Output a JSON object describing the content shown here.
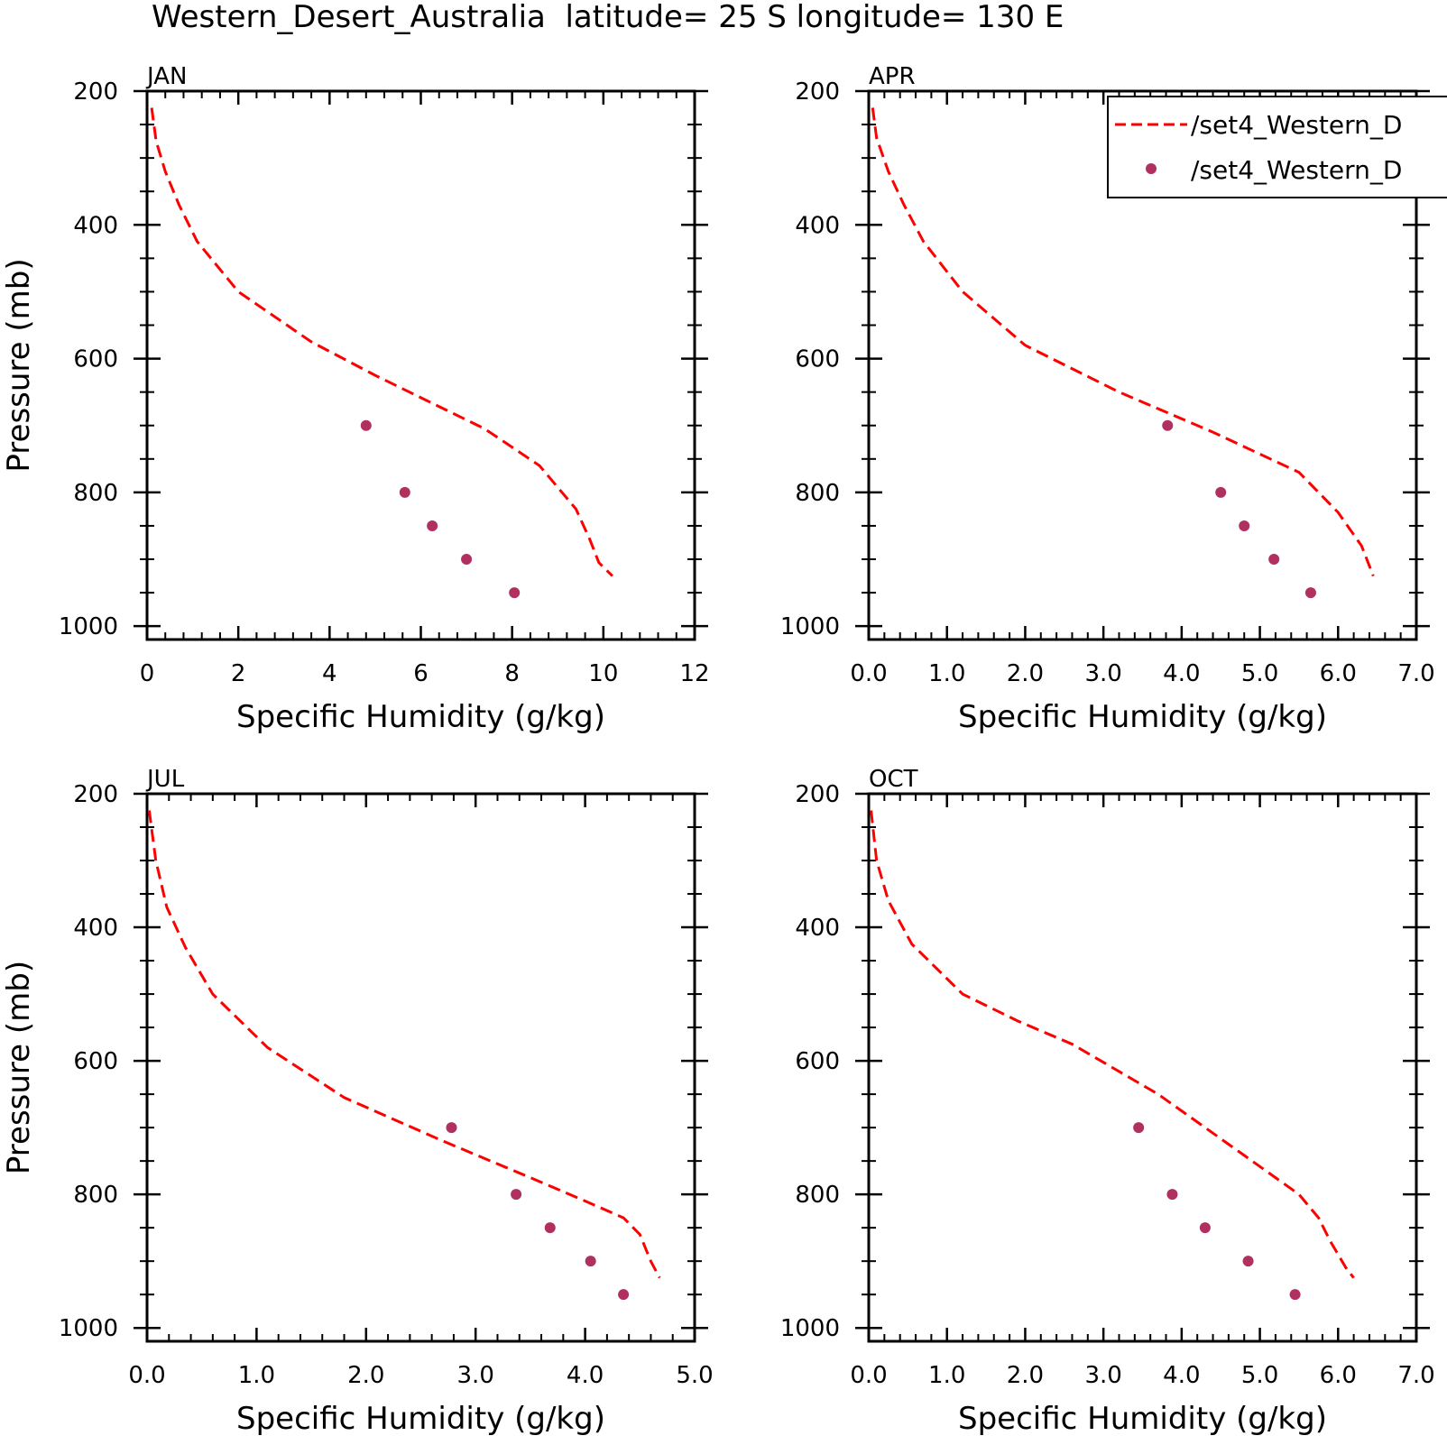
{
  "figure": {
    "title": "Western_Desert_Australia  latitude= 25 S longitude= 130 E"
  },
  "legend": {
    "entries": [
      {
        "label": "/set4_Western_D",
        "style": "dashed-line",
        "color": "#ff0000"
      },
      {
        "label": "/set4_Western_D",
        "style": "marker",
        "color": "#b03060"
      }
    ],
    "placement": "top-right of APR panel"
  },
  "colors": {
    "line": "#ff0000",
    "marker": "#b03060",
    "axes": "#000000"
  },
  "chart_data": [
    {
      "type": "line",
      "panel": "JAN",
      "xlabel": "Specific Humidity (g/kg)",
      "ylabel": "Pressure (mb)",
      "xlim": [
        0,
        12
      ],
      "ylim": [
        1020,
        200
      ],
      "xticks": [
        0,
        2,
        4,
        6,
        8,
        10,
        12
      ],
      "xtick_labels": [
        "0",
        "2",
        "4",
        "6",
        "8",
        "10",
        "12"
      ],
      "yticks": [
        200,
        400,
        600,
        800,
        1000
      ],
      "ytick_labels": [
        "200",
        "400",
        "600",
        "800",
        "1000"
      ],
      "series": [
        {
          "style": "dashed-line",
          "x": [
            0.1,
            0.2,
            0.4,
            0.7,
            1.1,
            2.0,
            3.6,
            5.0,
            6.2,
            7.4,
            8.6,
            9.4,
            9.7,
            9.9,
            10.2
          ],
          "y": [
            225,
            275,
            320,
            370,
            425,
            500,
            575,
            625,
            665,
            705,
            760,
            825,
            870,
            905,
            925
          ]
        },
        {
          "style": "marker",
          "x": [
            4.8,
            5.65,
            6.25,
            7.0,
            8.05
          ],
          "y": [
            700,
            800,
            850,
            900,
            950
          ]
        }
      ]
    },
    {
      "type": "line",
      "panel": "APR",
      "xlabel": "Specific Humidity (g/kg)",
      "ylabel": "",
      "xlim": [
        0,
        7
      ],
      "ylim": [
        1020,
        200
      ],
      "xticks": [
        0,
        1,
        2,
        3,
        4,
        5,
        6,
        7
      ],
      "xtick_labels": [
        "0.0",
        "1.0",
        "2.0",
        "3.0",
        "4.0",
        "5.0",
        "6.0",
        "7.0"
      ],
      "yticks": [
        200,
        400,
        600,
        800,
        1000
      ],
      "ytick_labels": [
        "200",
        "400",
        "600",
        "800",
        "1000"
      ],
      "series": [
        {
          "style": "dashed-line",
          "x": [
            0.05,
            0.1,
            0.25,
            0.45,
            0.7,
            1.2,
            2.0,
            3.2,
            4.4,
            5.5,
            6.0,
            6.3,
            6.4,
            6.45
          ],
          "y": [
            225,
            270,
            320,
            370,
            425,
            500,
            580,
            650,
            710,
            770,
            830,
            880,
            910,
            925
          ]
        },
        {
          "style": "marker",
          "x": [
            3.82,
            4.5,
            4.8,
            5.18,
            5.65
          ],
          "y": [
            700,
            800,
            850,
            900,
            950
          ]
        }
      ]
    },
    {
      "type": "line",
      "panel": "JUL",
      "xlabel": "Specific Humidity (g/kg)",
      "ylabel": "Pressure (mb)",
      "xlim": [
        0,
        5
      ],
      "ylim": [
        1020,
        200
      ],
      "xticks": [
        0,
        1,
        2,
        3,
        4,
        5
      ],
      "xtick_labels": [
        "0.0",
        "1.0",
        "2.0",
        "3.0",
        "4.0",
        "5.0"
      ],
      "yticks": [
        200,
        400,
        600,
        800,
        1000
      ],
      "ytick_labels": [
        "200",
        "400",
        "600",
        "800",
        "1000"
      ],
      "series": [
        {
          "style": "dashed-line",
          "x": [
            0.02,
            0.08,
            0.18,
            0.35,
            0.6,
            1.1,
            1.8,
            2.7,
            3.5,
            4.0,
            4.35,
            4.5,
            4.6,
            4.68
          ],
          "y": [
            225,
            300,
            370,
            430,
            500,
            580,
            655,
            720,
            775,
            810,
            835,
            860,
            900,
            925
          ]
        },
        {
          "style": "marker",
          "x": [
            2.78,
            3.37,
            3.68,
            4.05,
            4.35
          ],
          "y": [
            700,
            800,
            850,
            900,
            950
          ]
        }
      ]
    },
    {
      "type": "line",
      "panel": "OCT",
      "xlabel": "Specific Humidity (g/kg)",
      "ylabel": "",
      "xlim": [
        0,
        7
      ],
      "ylim": [
        1020,
        200
      ],
      "xticks": [
        0,
        1,
        2,
        3,
        4,
        5,
        6,
        7
      ],
      "xtick_labels": [
        "0.0",
        "1.0",
        "2.0",
        "3.0",
        "4.0",
        "5.0",
        "6.0",
        "7.0"
      ],
      "yticks": [
        200,
        400,
        600,
        800,
        1000
      ],
      "ytick_labels": [
        "200",
        "400",
        "600",
        "800",
        "1000"
      ],
      "series": [
        {
          "style": "dashed-line",
          "x": [
            0.03,
            0.1,
            0.25,
            0.55,
            1.2,
            1.9,
            2.6,
            3.7,
            4.6,
            5.5,
            5.75,
            5.9,
            6.1,
            6.2
          ],
          "y": [
            225,
            300,
            360,
            425,
            500,
            540,
            575,
            650,
            725,
            800,
            835,
            870,
            910,
            925
          ]
        },
        {
          "style": "marker",
          "x": [
            3.45,
            3.88,
            4.3,
            4.85,
            5.45
          ],
          "y": [
            700,
            800,
            850,
            900,
            950
          ]
        }
      ]
    }
  ]
}
